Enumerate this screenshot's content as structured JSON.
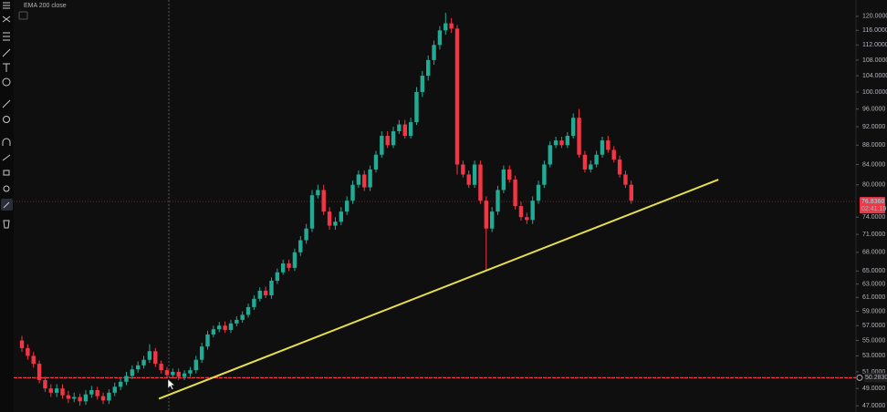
{
  "chart_data": {
    "type": "candlestick",
    "indicator": "EMA 200 close",
    "log_scale": true,
    "up_color": "#22ab94",
    "down_color": "#f23645",
    "open": [
      55,
      54,
      53,
      52,
      50,
      49,
      48.5,
      49,
      48.2,
      47.8,
      48,
      47.5,
      48.3,
      48.8,
      48.1,
      47.6,
      48.5,
      49.2,
      49.8,
      50.5,
      51.3,
      51.8,
      52.5,
      53.6,
      52,
      51.2,
      50.6,
      51,
      50.4,
      50.8,
      51.2,
      52.5,
      54.2,
      55.8,
      56.5,
      57,
      56.4,
      57.3,
      57.8,
      58.5,
      59.6,
      60.8,
      62,
      61.3,
      63.5,
      64.8,
      66.2,
      65.5,
      68,
      70,
      72,
      78,
      79,
      75,
      72.5,
      73.2,
      75,
      77,
      80,
      82,
      79.5,
      83,
      86,
      90,
      88,
      91,
      92.5,
      90,
      93,
      100,
      104,
      108,
      112,
      116,
      118,
      116.5,
      84,
      82,
      80,
      84,
      77,
      72,
      75,
      79,
      83,
      81,
      76,
      74,
      73.5,
      77,
      80,
      84,
      88,
      89,
      88,
      90,
      94,
      86,
      83,
      84,
      86,
      89,
      87,
      85,
      82,
      80
    ],
    "high": [
      55.6,
      54.5,
      53.5,
      52.4,
      50.4,
      49.5,
      49.5,
      49.5,
      48.7,
      48.5,
      48.4,
      48.8,
      49.3,
      49.2,
      48.5,
      48.9,
      49.7,
      50.2,
      51,
      51.8,
      52.3,
      53,
      54.5,
      54,
      52.4,
      51.6,
      51.4,
      51.4,
      51.2,
      51.6,
      53,
      54.7,
      56.3,
      57,
      57.5,
      57.6,
      57.8,
      58.3,
      59,
      60.1,
      61.3,
      62.5,
      62.6,
      64,
      65.4,
      66.8,
      66.8,
      68.6,
      70.7,
      72.8,
      79,
      80,
      80,
      75.8,
      74,
      75.8,
      77.8,
      80.8,
      82.8,
      82.8,
      83.8,
      86.8,
      91,
      91,
      92,
      93.5,
      93.5,
      94,
      101.2,
      105.2,
      109.2,
      113.2,
      117.2,
      121,
      119.5,
      117.5,
      84.8,
      82.8,
      84.8,
      84.8,
      77.8,
      75.8,
      79.8,
      83.8,
      83.8,
      81.8,
      76.8,
      74.8,
      77.8,
      80.8,
      84.8,
      88.8,
      89.8,
      89.8,
      90.8,
      95,
      96,
      86.8,
      84.8,
      86.8,
      89.8,
      90,
      87.8,
      85.8,
      82.8,
      80.8
    ],
    "low": [
      53.5,
      52.5,
      51.5,
      49.6,
      48.6,
      48,
      48,
      47.8,
      47.3,
      47.4,
      47,
      47.1,
      47.9,
      47.7,
      47.2,
      47.2,
      48.1,
      48.8,
      49.4,
      50.1,
      50.9,
      51.4,
      52.1,
      51.6,
      50.8,
      50.2,
      50.2,
      50,
      50,
      50.4,
      50.8,
      52.1,
      53.8,
      55.4,
      56.1,
      56,
      56,
      56.9,
      57.4,
      58.1,
      59.2,
      60.4,
      60.9,
      60.8,
      63,
      64.4,
      65,
      65,
      67.4,
      69.4,
      71.4,
      77.4,
      74.4,
      71.8,
      71.8,
      72.6,
      74.4,
      76.4,
      79.4,
      78.8,
      78.8,
      82.4,
      85.4,
      87.4,
      87.4,
      90.4,
      89.4,
      89.4,
      92.4,
      98.8,
      102.8,
      106.8,
      110.8,
      114.8,
      115.3,
      82,
      81.4,
      79.4,
      79.4,
      76.4,
      65,
      71.4,
      74.4,
      78.4,
      80.4,
      75.4,
      73.4,
      72.8,
      72.8,
      76.4,
      79.4,
      83.4,
      87.4,
      87.4,
      87.4,
      89.4,
      85.4,
      82.4,
      82.4,
      83.4,
      85.4,
      86.4,
      84.4,
      81.4,
      79.4,
      76.4
    ],
    "close": [
      54,
      53,
      52,
      50,
      49,
      48.5,
      49,
      48.2,
      47.8,
      48,
      47.5,
      48.3,
      48.8,
      48.1,
      47.6,
      48.5,
      49.2,
      49.8,
      50.5,
      51.3,
      51.8,
      52.5,
      53.6,
      52,
      51.2,
      50.6,
      51,
      50.4,
      50.8,
      51.2,
      52.5,
      54.2,
      55.8,
      56.5,
      57,
      56.4,
      57.3,
      57.8,
      58.5,
      59.6,
      60.8,
      62,
      61.3,
      63.5,
      64.8,
      66.2,
      65.5,
      68,
      70,
      72,
      78,
      79,
      75,
      72.5,
      73.2,
      75,
      77,
      80,
      82,
      79.5,
      83,
      86,
      90,
      88,
      91,
      92.5,
      90,
      93,
      100,
      104,
      108,
      112,
      116,
      118,
      116.5,
      84,
      82,
      80,
      84,
      77,
      72,
      75,
      79,
      83,
      81,
      76,
      74,
      73.5,
      77,
      80,
      84,
      88,
      89,
      88,
      90,
      94,
      86,
      83,
      84,
      86,
      89,
      87,
      85,
      82,
      80,
      77
    ],
    "ylim": [
      46.3,
      124.8
    ],
    "yticks": [
      {
        "value": 120,
        "label": "120.0000"
      },
      {
        "value": 116,
        "label": "116.0000"
      },
      {
        "value": 112,
        "label": "112.0000"
      },
      {
        "value": 108,
        "label": "108.0000"
      },
      {
        "value": 104,
        "label": "104.0000"
      },
      {
        "value": 100,
        "label": "100.0000"
      },
      {
        "value": 96,
        "label": "96.0000"
      },
      {
        "value": 92,
        "label": "92.0000"
      },
      {
        "value": 88,
        "label": "88.0000"
      },
      {
        "value": 84,
        "label": "84.0000"
      },
      {
        "value": 80,
        "label": "80.0000"
      },
      {
        "value": 74,
        "label": "74.0000"
      },
      {
        "value": 71,
        "label": "71.0000"
      },
      {
        "value": 68,
        "label": "68.0000"
      },
      {
        "value": 65,
        "label": "65.0000"
      },
      {
        "value": 63,
        "label": "63.0000"
      },
      {
        "value": 61,
        "label": "61.0000"
      },
      {
        "value": 59,
        "label": "59.0000"
      },
      {
        "value": 57,
        "label": "57.0000"
      },
      {
        "value": 55,
        "label": "55.0000"
      },
      {
        "value": 53,
        "label": "53.0000"
      },
      {
        "value": 51,
        "label": "51.0000"
      },
      {
        "value": 49,
        "label": "49.0000"
      },
      {
        "value": 47,
        "label": "47.0000"
      }
    ],
    "current_price": {
      "value": 76.836,
      "label": "76.8360",
      "countdown": "02:41:19",
      "color": "#f23645"
    },
    "support_line": {
      "value": 50.283,
      "label": "50.2830",
      "color": "#f23645"
    },
    "trendline": {
      "color": "#e6de4a",
      "from": {
        "index": 23.6,
        "price": 47.8
      },
      "to": {
        "index": 120,
        "price": 81
      }
    }
  }
}
